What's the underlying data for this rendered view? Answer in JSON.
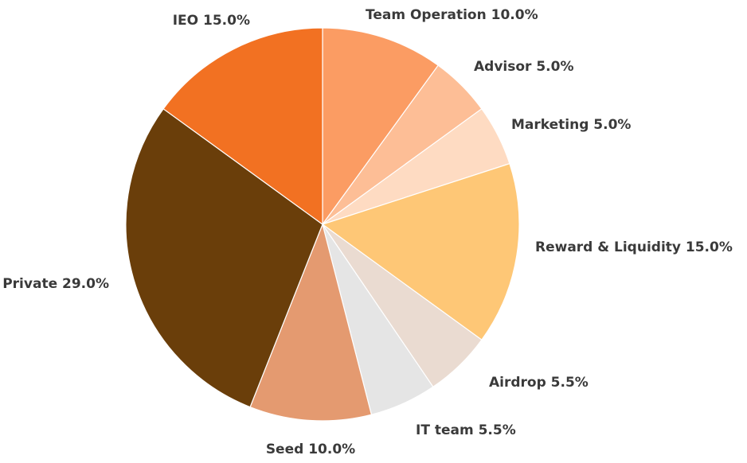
{
  "chart_data": {
    "type": "pie",
    "title": "",
    "start_angle_deg": 0,
    "direction": "clockwise",
    "slices": [
      {
        "label": "Team Operation",
        "value": 10.0,
        "display": "Team Operation 10.0%",
        "color": "#FB9C63",
        "label_anchor": "start"
      },
      {
        "label": "Advisor",
        "value": 5.0,
        "display": "Advisor 5.0%",
        "color": "#FDBE96",
        "label_anchor": "start"
      },
      {
        "label": "Marketing",
        "value": 5.0,
        "display": "Marketing 5.0%",
        "color": "#FEDBC2",
        "label_anchor": "start"
      },
      {
        "label": "Reward & Liquidity",
        "value": 15.0,
        "display": "Reward & Liquidity 15.0%",
        "color": "#FEC776",
        "label_anchor": "start"
      },
      {
        "label": "Airdrop",
        "value": 5.5,
        "display": "Airdrop 5.5%",
        "color": "#EADBD1",
        "label_anchor": "start"
      },
      {
        "label": "IT team",
        "value": 5.5,
        "display": "IT team 5.5%",
        "color": "#E5E5E5",
        "label_anchor": "start"
      },
      {
        "label": "Seed",
        "value": 10.0,
        "display": "Seed 10.0%",
        "color": "#E49A70",
        "label_anchor": "middle"
      },
      {
        "label": "Private",
        "value": 29.0,
        "display": "Private 29.0%",
        "color": "#6A3E0A",
        "label_anchor": "end"
      },
      {
        "label": "IEO",
        "value": 15.0,
        "display": "IEO 15.0%",
        "color": "#F27122",
        "label_anchor": "end"
      }
    ]
  }
}
